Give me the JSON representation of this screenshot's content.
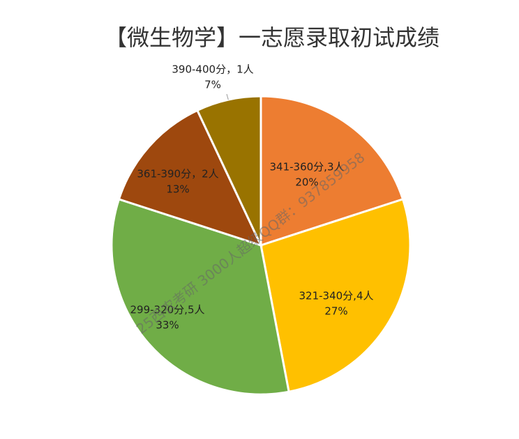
{
  "chart_data": {
    "type": "pie",
    "title": "【微生物学】一志愿录取初试成绩",
    "categories": [
      "341-360分,3人",
      "321-340分,4人",
      "299-320分,5人",
      "361-390分，2人",
      "390-400分，1人"
    ],
    "values": [
      20,
      27,
      33,
      13,
      7
    ],
    "value_labels": [
      "20%",
      "27%",
      "33%",
      "13%",
      "7%"
    ],
    "colors": [
      "#ED7D31",
      "#FFC000",
      "#70AD47",
      "#9E480E",
      "#997300"
    ],
    "watermark": "25西农考研 3000人超级QQ群：937859958"
  }
}
